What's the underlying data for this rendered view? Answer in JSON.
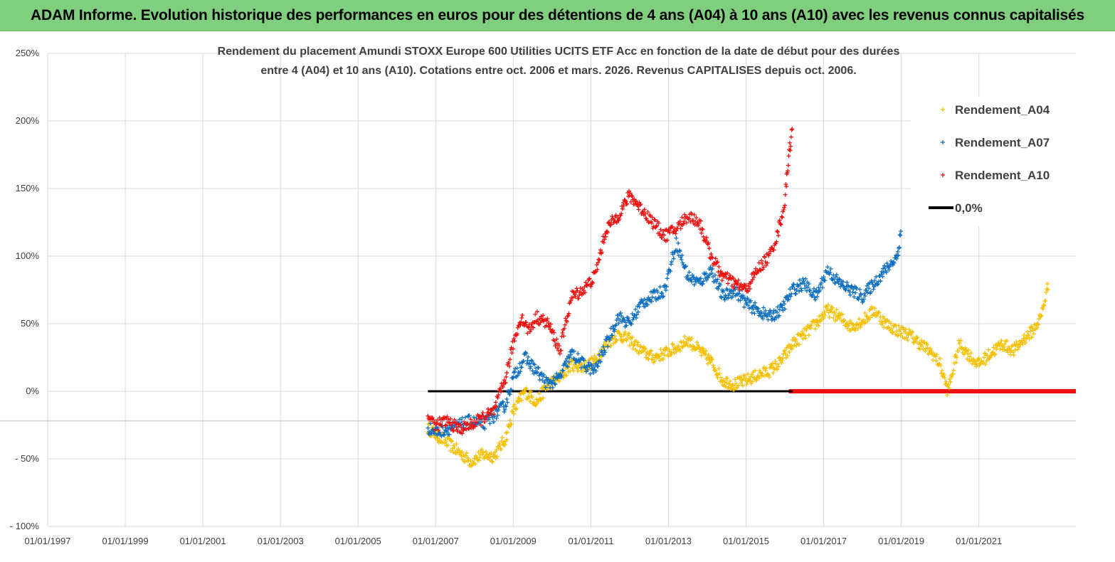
{
  "banner": {
    "title": "ADAM Informe. Evolution historique des performances en euros pour des détentions de 4 ans (A04) à 10 ans (A10) avec les revenus connus capitalisés"
  },
  "chart_data": {
    "type": "scatter",
    "title_line1": "Rendement du placement Amundi STOXX Europe 600 Utilities UCITS ETF Acc en fonction de la date de début pour des durées",
    "title_line2": "entre 4 (A04) et 10 ans (A10). Cotations entre oct. 2006 et mars. 2026. Revenus CAPITALISES depuis oct. 2006.",
    "x_range": [
      1997.0,
      2023.5
    ],
    "ylim": [
      -100,
      250
    ],
    "y_ticks": [
      {
        "value": 250,
        "label": "250%"
      },
      {
        "value": 200,
        "label": "200%"
      },
      {
        "value": 150,
        "label": "150%"
      },
      {
        "value": 100,
        "label": "100%"
      },
      {
        "value": 50,
        "label": "50%"
      },
      {
        "value": 0,
        "label": "0%"
      },
      {
        "value": -50,
        "label": "- 50%"
      },
      {
        "value": -100,
        "label": "- 100%"
      }
    ],
    "x_ticks": [
      {
        "value": 1997,
        "label": "01/01/1997"
      },
      {
        "value": 1999,
        "label": "01/01/1999"
      },
      {
        "value": 2001,
        "label": "01/01/2001"
      },
      {
        "value": 2003,
        "label": "01/01/2003"
      },
      {
        "value": 2005,
        "label": "01/01/2005"
      },
      {
        "value": 2007,
        "label": "01/01/2007"
      },
      {
        "value": 2009,
        "label": "01/01/2009"
      },
      {
        "value": 2011,
        "label": "01/01/2011"
      },
      {
        "value": 2013,
        "label": "01/01/2013"
      },
      {
        "value": 2015,
        "label": "01/01/2015"
      },
      {
        "value": 2017,
        "label": "01/01/2017"
      },
      {
        "value": 2019,
        "label": "01/01/2019"
      },
      {
        "value": 2021,
        "label": "01/01/2021"
      }
    ],
    "grid": true,
    "legend_position": "top-right",
    "series": [
      {
        "name": "Rendement_A04",
        "color": "#f5c000",
        "x": [
          2006.8,
          2007.0,
          2007.3,
          2007.6,
          2007.9,
          2008.2,
          2008.5,
          2008.8,
          2009.0,
          2009.3,
          2009.6,
          2009.9,
          2010.2,
          2010.5,
          2010.8,
          2011.1,
          2011.4,
          2011.7,
          2012.0,
          2012.3,
          2012.6,
          2012.9,
          2013.2,
          2013.5,
          2013.8,
          2014.1,
          2014.4,
          2014.7,
          2015.0,
          2015.3,
          2015.6,
          2015.9,
          2016.2,
          2016.5,
          2016.8,
          2017.1,
          2017.4,
          2017.7,
          2018.0,
          2018.3,
          2018.6,
          2018.9,
          2019.2,
          2019.5,
          2019.8,
          2020.0,
          2020.2,
          2020.5,
          2020.8,
          2021.0,
          2021.3,
          2021.6,
          2021.9,
          2022.2,
          2022.4,
          2022.6,
          2022.8
        ],
        "y": [
          -27,
          -32,
          -38,
          -45,
          -52,
          -47,
          -48,
          -35,
          -15,
          0,
          -8,
          5,
          10,
          20,
          18,
          22,
          35,
          42,
          38,
          30,
          25,
          28,
          32,
          38,
          30,
          22,
          8,
          5,
          8,
          12,
          15,
          22,
          35,
          42,
          50,
          60,
          55,
          48,
          52,
          60,
          50,
          45,
          42,
          35,
          28,
          20,
          0,
          35,
          25,
          20,
          28,
          35,
          30,
          40,
          45,
          55,
          80
        ]
      },
      {
        "name": "Rendement_A07",
        "color": "#0f6fc0",
        "x": [
          2006.8,
          2007.0,
          2007.3,
          2007.6,
          2007.9,
          2008.2,
          2008.5,
          2008.8,
          2009.0,
          2009.3,
          2009.6,
          2009.9,
          2010.2,
          2010.5,
          2010.8,
          2011.1,
          2011.4,
          2011.7,
          2012.0,
          2012.3,
          2012.6,
          2012.9,
          2013.2,
          2013.5,
          2013.8,
          2014.1,
          2014.4,
          2014.7,
          2015.0,
          2015.3,
          2015.6,
          2015.9,
          2016.2,
          2016.5,
          2016.8,
          2017.1,
          2017.4,
          2017.7,
          2018.0,
          2018.3,
          2018.6,
          2018.9,
          2019.0
        ],
        "y": [
          -27,
          -30,
          -28,
          -25,
          -22,
          -25,
          -18,
          -10,
          10,
          25,
          15,
          5,
          10,
          28,
          20,
          15,
          35,
          55,
          50,
          65,
          70,
          75,
          110,
          85,
          80,
          90,
          70,
          75,
          65,
          60,
          55,
          60,
          75,
          80,
          70,
          90,
          80,
          75,
          70,
          80,
          90,
          100,
          120
        ]
      },
      {
        "name": "Rendement_A10",
        "color": "#ef1010",
        "x": [
          2006.8,
          2007.0,
          2007.3,
          2007.6,
          2007.9,
          2008.2,
          2008.5,
          2008.8,
          2009.0,
          2009.2,
          2009.4,
          2009.6,
          2009.9,
          2010.2,
          2010.5,
          2010.8,
          2011.1,
          2011.4,
          2011.7,
          2012.0,
          2012.3,
          2012.6,
          2012.9,
          2013.2,
          2013.5,
          2013.8,
          2014.1,
          2014.4,
          2014.7,
          2015.0,
          2015.3,
          2015.6,
          2015.8,
          2016.0,
          2016.1,
          2016.2
        ],
        "y": [
          -18,
          -25,
          -22,
          -28,
          -25,
          -20,
          -15,
          10,
          35,
          55,
          45,
          55,
          50,
          30,
          70,
          75,
          85,
          120,
          130,
          145,
          135,
          125,
          115,
          120,
          130,
          125,
          100,
          85,
          80,
          75,
          90,
          100,
          115,
          140,
          175,
          195
        ]
      },
      {
        "name": "Rendement_A10_zero",
        "color": "#ef1010",
        "x_start": 2016.1,
        "x_end": 2023.5,
        "value": 0
      },
      {
        "name": "0,0%",
        "color": "#000000",
        "x_start": 2006.8,
        "x_end": 2016.2,
        "value": 0
      }
    ],
    "legend": [
      {
        "label": "Rendement_A04",
        "color": "#f5c000",
        "marker": "cross"
      },
      {
        "label": "Rendement_A07",
        "color": "#0f6fc0",
        "marker": "cross"
      },
      {
        "label": "Rendement_A10",
        "color": "#ef1010",
        "marker": "cross"
      },
      {
        "label": "0,0%",
        "color": "#000000",
        "marker": "line"
      }
    ]
  }
}
